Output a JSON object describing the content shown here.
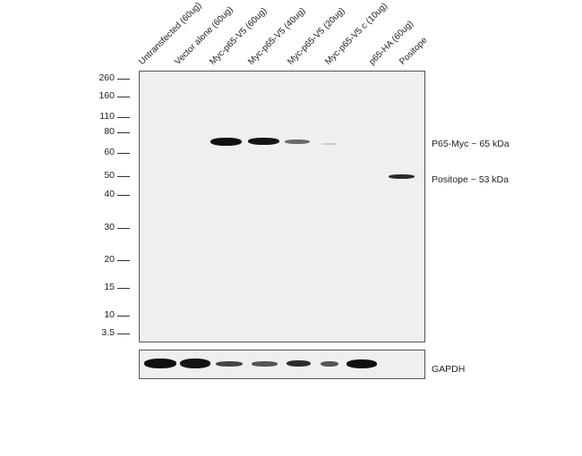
{
  "lanes": [
    "Untransfected (60ug)",
    "Vector alone (60ug)",
    "Myc-p65-V5 (60ug)",
    "Myc-p65-V5 (40ug)",
    "Myc-p65-V5 (20ug)",
    "Myc-p65-V5 c (10ug)",
    "p65-HA (60ug)",
    "Positope"
  ],
  "mw_markers": [
    "260",
    "160",
    "110",
    "80",
    "60",
    "50",
    "40",
    "30",
    "20",
    "15",
    "10",
    "3.5"
  ],
  "annotations": {
    "p65_myc": "P65-Myc ~ 65 kDa",
    "positope": "Positope ~ 53 kDa",
    "gapdh": "GAPDH"
  },
  "main_blot": {
    "p65_myc_band_intensity": [
      0,
      0,
      1.0,
      0.95,
      0.45,
      0.08,
      0,
      0
    ],
    "positope_band_intensity": [
      0,
      0,
      0,
      0,
      0,
      0,
      0,
      0.85
    ]
  },
  "gapdh_blot": {
    "band_intensity": [
      1.0,
      0.95,
      0.55,
      0.45,
      0.7,
      0.45,
      1.0,
      0
    ]
  }
}
